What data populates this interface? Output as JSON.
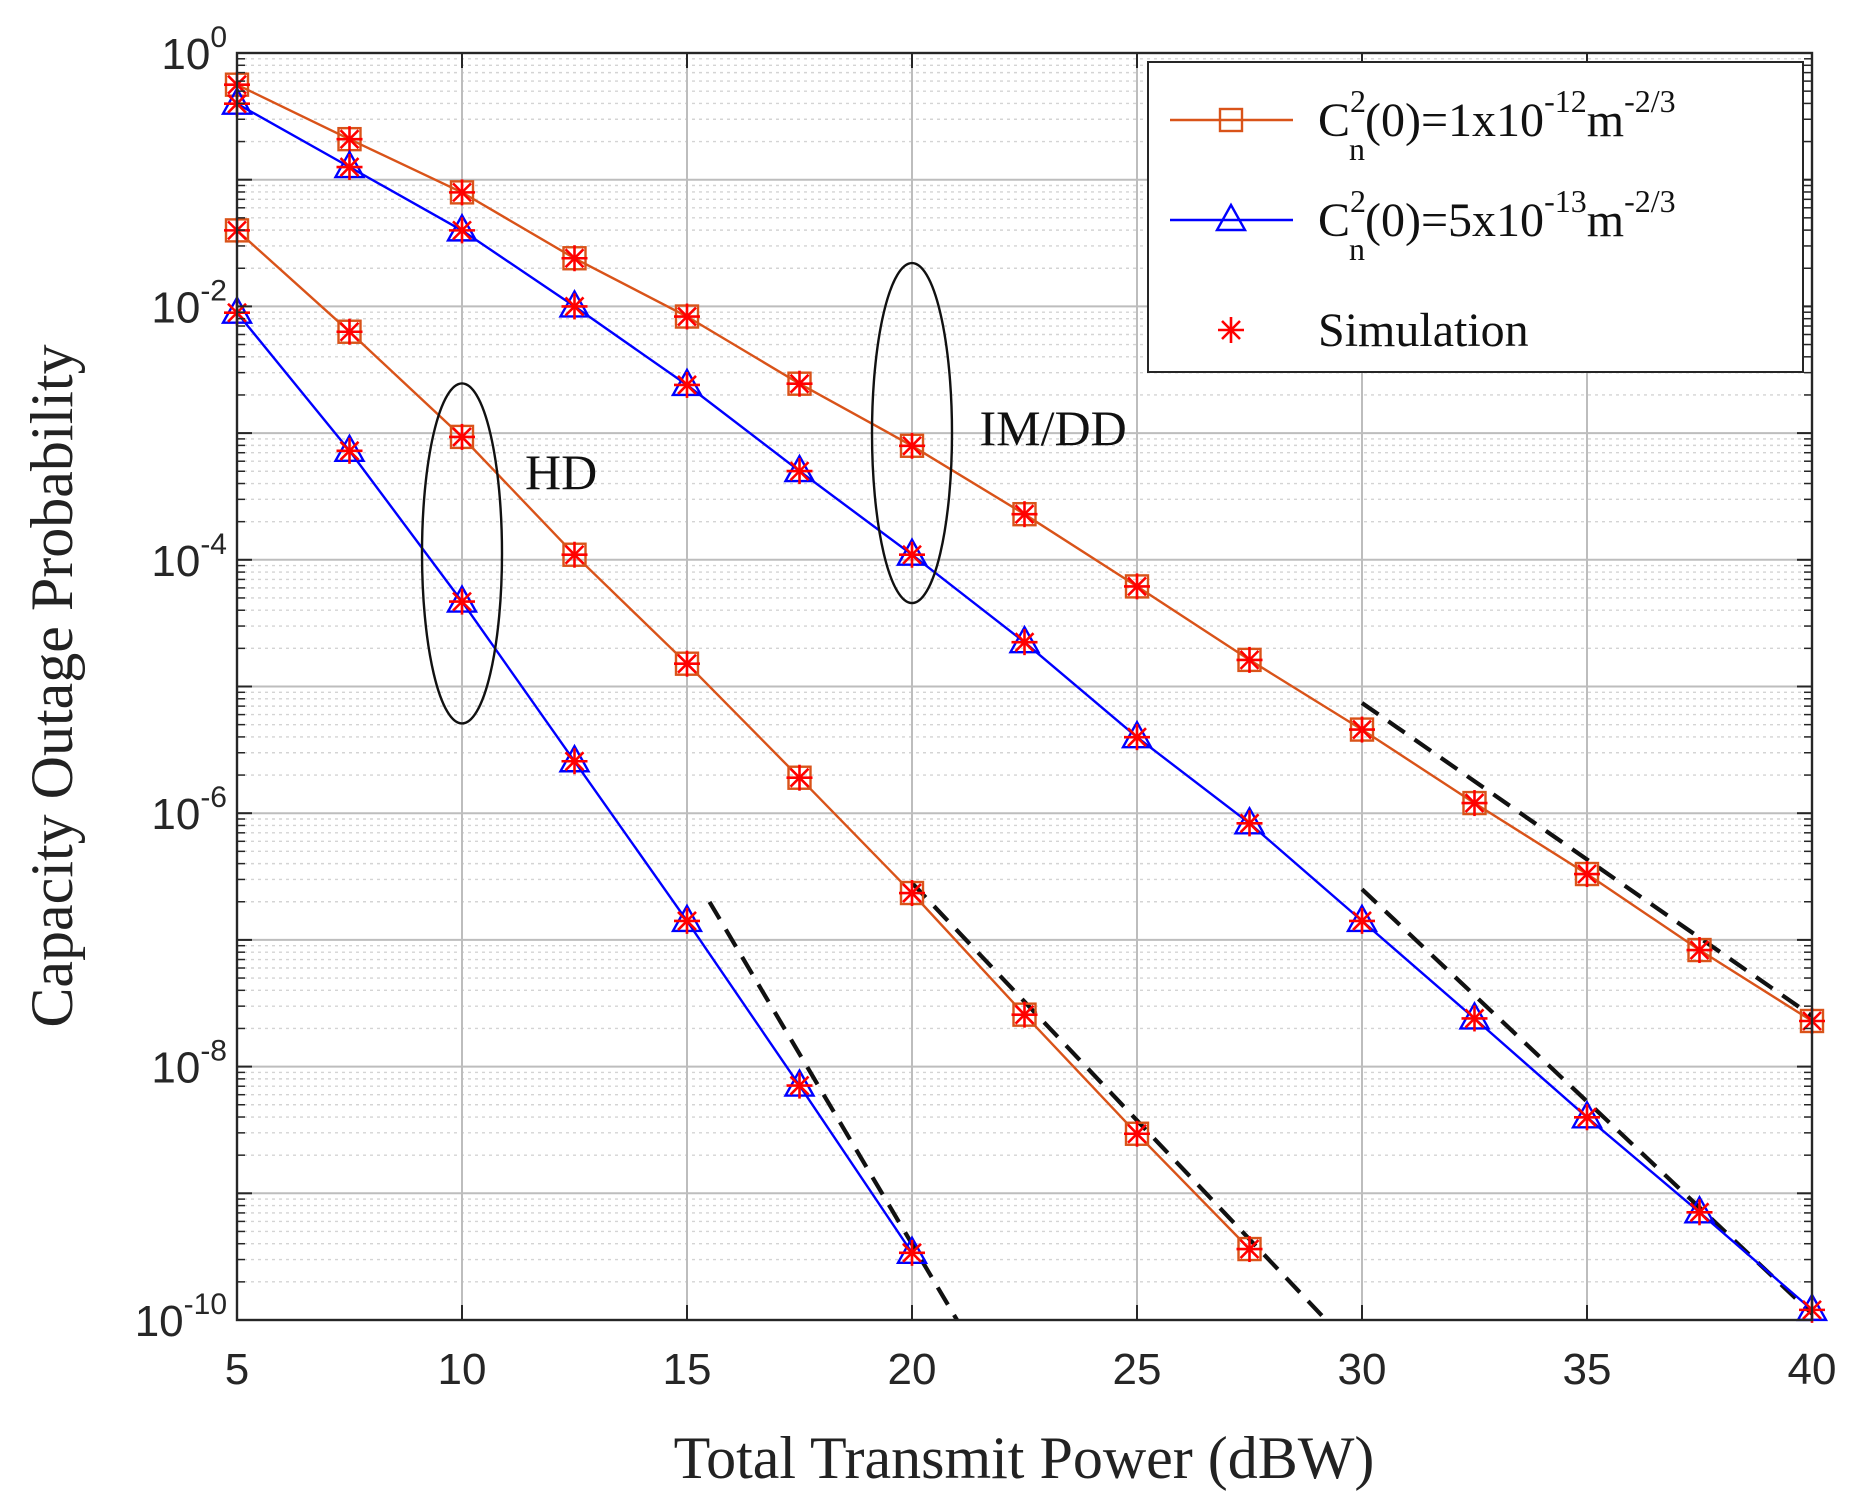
{
  "chart_data": {
    "type": "line",
    "xscale": "linear",
    "yscale": "log",
    "xlabel": "Total Transmit Power (dBW)",
    "ylabel": "Capacity Outage Probability",
    "xlim": [
      5,
      40
    ],
    "ylim_exp": [
      -10,
      0
    ],
    "xticks": [
      "5",
      "10",
      "15",
      "20",
      "25",
      "30",
      "35",
      "40"
    ],
    "yticks": [
      {
        "exp": 0,
        "base": "10",
        "sup": "0"
      },
      {
        "exp": -2,
        "base": "10",
        "sup": "-2"
      },
      {
        "exp": -4,
        "base": "10",
        "sup": "-4"
      },
      {
        "exp": -6,
        "base": "10",
        "sup": "-6"
      },
      {
        "exp": -8,
        "base": "10",
        "sup": "-8"
      },
      {
        "exp": -10,
        "base": "10",
        "sup": "-10"
      }
    ],
    "grid": true,
    "legend_position": "top-right",
    "legend": [
      {
        "key": "orange",
        "marker": "square",
        "color": "#d95319",
        "parts": {
          "c": "C",
          "sup1": "2",
          "sub": "n",
          "mid": "(0)=1x10",
          "sup2": "-12",
          "m": "m",
          "sup3": "-2/3"
        }
      },
      {
        "key": "blue",
        "marker": "triangle",
        "color": "#0000ff",
        "parts": {
          "c": "C",
          "sup1": "2",
          "sub": "n",
          "mid": "(0)=5x10",
          "sup2": "-13",
          "m": "m",
          "sup3": "-2/3"
        }
      },
      {
        "key": "sim",
        "marker": "asterisk",
        "color": "#ff0000",
        "label": "Simulation"
      }
    ],
    "series": [
      {
        "name": "IM/DD, Cn2(0)=1e-12",
        "color": "#d95319",
        "marker": "square",
        "x": [
          5,
          7.5,
          10,
          12.5,
          15,
          17.5,
          20,
          22.5,
          25,
          27.5,
          30,
          32.5,
          35,
          37.5,
          40
        ],
        "log10y": [
          -0.25,
          -0.68,
          -1.1,
          -1.62,
          -2.08,
          -2.61,
          -3.1,
          -3.64,
          -4.21,
          -4.79,
          -5.34,
          -5.92,
          -6.48,
          -7.08,
          -7.64
        ]
      },
      {
        "name": "IM/DD, Cn2(0)=5e-13",
        "color": "#0000ff",
        "marker": "triangle",
        "x": [
          5,
          7.5,
          10,
          12.5,
          15,
          17.5,
          20,
          22.5,
          25,
          27.5,
          30,
          32.5,
          35,
          37.5,
          40
        ],
        "log10y": [
          -0.4,
          -0.9,
          -1.4,
          -2.0,
          -2.62,
          -3.3,
          -3.96,
          -4.65,
          -5.4,
          -6.08,
          -6.85,
          -7.62,
          -8.4,
          -9.15,
          -9.92
        ]
      },
      {
        "name": "HD, Cn2(0)=1e-12",
        "color": "#d95319",
        "marker": "square",
        "x": [
          5,
          7.5,
          10,
          12.5,
          15,
          17.5,
          20,
          22.5,
          25,
          27.5
        ],
        "log10y": [
          -1.4,
          -2.2,
          -3.03,
          -3.96,
          -4.82,
          -5.72,
          -6.63,
          -7.59,
          -8.53,
          -9.44
        ]
      },
      {
        "name": "HD, Cn2(0)=5e-13",
        "color": "#0000ff",
        "marker": "triangle",
        "x": [
          5,
          7.5,
          10,
          12.5,
          15,
          17.5,
          20
        ],
        "log10y": [
          -2.05,
          -3.14,
          -4.33,
          -5.59,
          -6.85,
          -8.15,
          -9.47
        ]
      }
    ],
    "asymptotes": [
      {
        "x": [
          15.5,
          21.0
        ],
        "log10y": [
          -6.7,
          -10.0
        ]
      },
      {
        "x": [
          20,
          29.2
        ],
        "log10y": [
          -6.55,
          -10.0
        ]
      },
      {
        "x": [
          30,
          40
        ],
        "log10y": [
          -6.6,
          -9.95
        ]
      },
      {
        "x": [
          30,
          40
        ],
        "log10y": [
          -5.13,
          -7.6
        ]
      }
    ],
    "annotations": [
      {
        "label": "HD",
        "x": 11.4,
        "log10y": -3.3,
        "ellipse": {
          "x": 10.0,
          "log10y": -3.95
        }
      },
      {
        "label": "IM/DD",
        "x": 21.5,
        "log10y": -2.95,
        "ellipse": {
          "x": 20.0,
          "log10y": -3.0
        }
      }
    ]
  }
}
